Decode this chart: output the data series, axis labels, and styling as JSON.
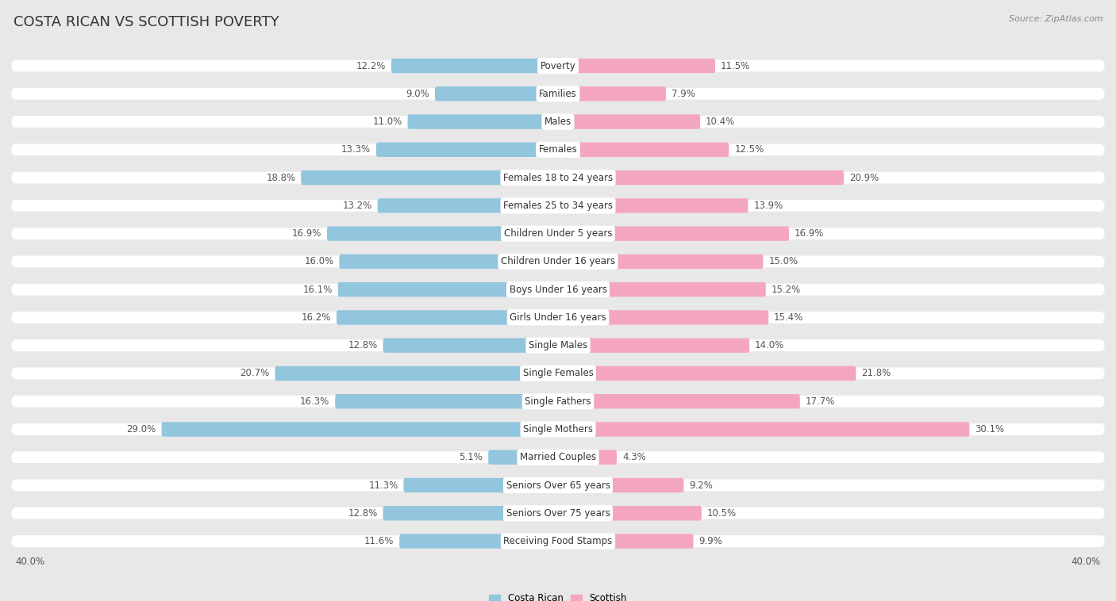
{
  "title": "COSTA RICAN VS SCOTTISH POVERTY",
  "source": "Source: ZipAtlas.com",
  "categories": [
    "Poverty",
    "Families",
    "Males",
    "Females",
    "Females 18 to 24 years",
    "Females 25 to 34 years",
    "Children Under 5 years",
    "Children Under 16 years",
    "Boys Under 16 years",
    "Girls Under 16 years",
    "Single Males",
    "Single Females",
    "Single Fathers",
    "Single Mothers",
    "Married Couples",
    "Seniors Over 65 years",
    "Seniors Over 75 years",
    "Receiving Food Stamps"
  ],
  "costa_rican": [
    12.2,
    9.0,
    11.0,
    13.3,
    18.8,
    13.2,
    16.9,
    16.0,
    16.1,
    16.2,
    12.8,
    20.7,
    16.3,
    29.0,
    5.1,
    11.3,
    12.8,
    11.6
  ],
  "scottish": [
    11.5,
    7.9,
    10.4,
    12.5,
    20.9,
    13.9,
    16.9,
    15.0,
    15.2,
    15.4,
    14.0,
    21.8,
    17.7,
    30.1,
    4.3,
    9.2,
    10.5,
    9.9
  ],
  "costa_rican_color": "#92c5de",
  "scottish_color": "#f4a6c0",
  "background_color": "#e8e8e8",
  "bar_bg_color": "#f0f0f0",
  "row_bg_color": "#ffffff",
  "label_bg_color": "#ffffff",
  "xlim": 40.0,
  "legend_left": "Costa Rican",
  "legend_right": "Scottish",
  "title_fontsize": 13,
  "label_fontsize": 8.5,
  "value_fontsize": 8.5,
  "bar_height": 0.52
}
